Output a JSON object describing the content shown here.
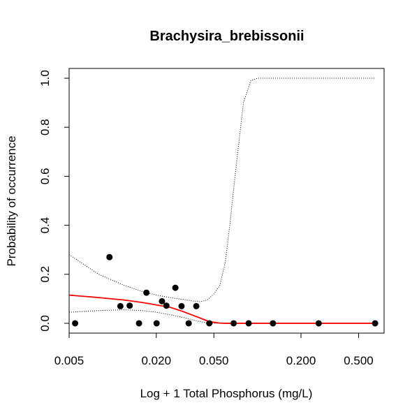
{
  "chart_data": {
    "type": "scatter",
    "title": "Brachysira_brebissonii",
    "xlabel": "Log + 1 Total Phosphorus (mg/L)",
    "ylabel": "Probability of occurrence",
    "x_scale": "log",
    "xlim": [
      0.005,
      0.75
    ],
    "ylim": [
      -0.04,
      1.04
    ],
    "x_ticks": [
      0.005,
      0.02,
      0.05,
      0.2,
      0.5
    ],
    "x_tick_labels": [
      "0.005",
      "0.020",
      "0.050",
      "0.200",
      "0.500"
    ],
    "y_ticks": [
      0.0,
      0.2,
      0.4,
      0.6,
      0.8,
      1.0
    ],
    "y_tick_labels": [
      "0.0",
      "0.2",
      "0.4",
      "0.6",
      "0.8",
      "1.0"
    ],
    "points": [
      {
        "x": 0.0055,
        "y": 0.0
      },
      {
        "x": 0.0095,
        "y": 0.27
      },
      {
        "x": 0.0113,
        "y": 0.07
      },
      {
        "x": 0.0131,
        "y": 0.072
      },
      {
        "x": 0.0152,
        "y": 0.0
      },
      {
        "x": 0.0171,
        "y": 0.125
      },
      {
        "x": 0.0201,
        "y": 0.0
      },
      {
        "x": 0.0219,
        "y": 0.09
      },
      {
        "x": 0.0235,
        "y": 0.072
      },
      {
        "x": 0.0271,
        "y": 0.145
      },
      {
        "x": 0.0299,
        "y": 0.07
      },
      {
        "x": 0.0335,
        "y": 0.0
      },
      {
        "x": 0.0378,
        "y": 0.07
      },
      {
        "x": 0.0465,
        "y": 0.0
      },
      {
        "x": 0.0685,
        "y": 0.0
      },
      {
        "x": 0.087,
        "y": 0.0
      },
      {
        "x": 0.128,
        "y": 0.0
      },
      {
        "x": 0.265,
        "y": 0.0
      },
      {
        "x": 0.65,
        "y": 0.0
      }
    ],
    "fit_line": {
      "color": "#ff0000",
      "x": [
        0.005,
        0.008,
        0.012,
        0.016,
        0.02,
        0.025,
        0.03,
        0.035,
        0.04,
        0.045,
        0.05,
        0.055,
        0.06,
        0.065,
        0.07,
        0.08,
        0.1,
        0.15,
        0.2,
        0.3,
        0.5,
        0.65
      ],
      "y": [
        0.115,
        0.105,
        0.095,
        0.085,
        0.075,
        0.065,
        0.05,
        0.035,
        0.022,
        0.01,
        0.004,
        0.001,
        0.0,
        0.0,
        0.0,
        0.0,
        0.0,
        0.0,
        0.0,
        0.0,
        0.0,
        0.0
      ]
    },
    "upper_band": {
      "style": "dotted",
      "x": [
        0.005,
        0.008,
        0.012,
        0.016,
        0.02,
        0.025,
        0.03,
        0.035,
        0.04,
        0.045,
        0.05,
        0.055,
        0.06,
        0.065,
        0.07,
        0.08,
        0.09,
        0.1,
        0.2,
        0.5,
        0.65
      ],
      "y": [
        0.28,
        0.2,
        0.155,
        0.13,
        0.115,
        0.105,
        0.098,
        0.092,
        0.088,
        0.095,
        0.12,
        0.155,
        0.25,
        0.42,
        0.6,
        0.9,
        0.99,
        1.0,
        1.0,
        1.0,
        1.0
      ]
    },
    "lower_band": {
      "style": "dotted",
      "x": [
        0.005,
        0.008,
        0.012,
        0.016,
        0.02,
        0.025,
        0.03,
        0.035,
        0.04,
        0.045,
        0.05,
        0.055,
        0.06,
        0.07,
        0.1,
        0.2,
        0.5,
        0.65
      ],
      "y": [
        0.045,
        0.052,
        0.055,
        0.052,
        0.045,
        0.035,
        0.025,
        0.015,
        0.007,
        0.002,
        0.0,
        0.0,
        0.0,
        0.0,
        0.0,
        0.0,
        0.0,
        0.0
      ]
    },
    "point_color": "#000000",
    "grid": false
  }
}
